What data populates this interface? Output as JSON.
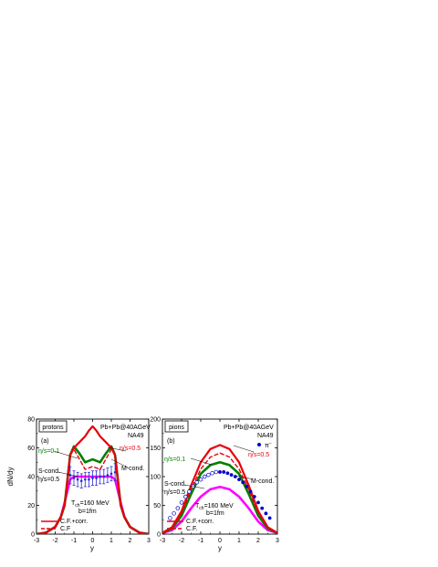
{
  "chart_data": [
    {
      "type": "line",
      "panel_label": "(a)",
      "species_label": "protons",
      "system_label": "Pb+Pb@40AGeV",
      "experiment_label": "NA49",
      "xlabel": "y",
      "ylabel": "dN/dy",
      "xlim": [
        -3,
        3
      ],
      "ylim": [
        0,
        80
      ],
      "xticks": [
        "-3",
        "-2",
        "-1",
        "0",
        "1",
        "2",
        "3"
      ],
      "yticks": [
        "0",
        "20",
        "40",
        "60",
        "80"
      ],
      "annotations": {
        "eta_high": "η/s=0.5",
        "eta_low": "η/s=0.1",
        "m_cond": "M-cond.",
        "s_cond": "S-cond.",
        "s_cond_eta": "η/s=0.5",
        "tch": "T",
        "tch_sub": "ch",
        "tch_val": "=160 MeV",
        "impact": "b=1fm"
      },
      "legend": [
        "C.F.+corr.",
        "C.F"
      ],
      "series": [
        {
          "name": "C.F.+corr.",
          "color": "#e8000b",
          "x": [
            -3,
            -2.5,
            -2,
            -1.7,
            -1.5,
            -1.2,
            -1.0,
            -0.7,
            -0.4,
            -0.2,
            0,
            0.2,
            0.4,
            0.7,
            1.0,
            1.2,
            1.5,
            1.7,
            2,
            2.5,
            3
          ],
          "y": [
            0,
            1,
            5,
            12,
            20,
            55,
            60,
            64,
            68,
            72,
            75,
            72,
            68,
            64,
            60,
            55,
            20,
            12,
            5,
            1,
            0
          ]
        },
        {
          "name": "C.F",
          "color": "#e8000b",
          "dashed": true,
          "x": [
            -3,
            -2.5,
            -2,
            -1.7,
            -1.5,
            -1.2,
            -1.0,
            -0.7,
            -0.4,
            -0.2,
            0,
            0.2,
            0.4,
            0.7,
            1.0,
            1.2,
            1.5,
            1.7,
            2,
            2.5,
            3
          ],
          "y": [
            0,
            1,
            5,
            12,
            20,
            55,
            59,
            52,
            45,
            46,
            47,
            46,
            45,
            52,
            59,
            55,
            20,
            12,
            5,
            1,
            0
          ]
        },
        {
          "color": "#008000",
          "x": [
            -3,
            -2.5,
            -2,
            -1.7,
            -1.5,
            -1.2,
            -1.0,
            -0.7,
            -0.4,
            -0.2,
            0,
            0.2,
            0.4,
            0.7,
            1.0,
            1.2,
            1.5,
            1.7,
            2,
            2.5,
            3
          ],
          "y": [
            0,
            1,
            5,
            12,
            20,
            55,
            61,
            56,
            50,
            51,
            52,
            51,
            50,
            56,
            61,
            55,
            20,
            12,
            5,
            1,
            0
          ]
        },
        {
          "color": "#ff00ff",
          "x": [
            -3,
            -2.5,
            -2,
            -1.7,
            -1.5,
            -1.2,
            -1.0,
            -0.5,
            0,
            0.5,
            1.0,
            1.2,
            1.5,
            1.7,
            2,
            2.5,
            3
          ],
          "y": [
            0,
            1,
            5,
            12,
            22,
            38,
            40,
            40,
            40,
            40,
            40,
            38,
            22,
            12,
            5,
            1,
            0
          ]
        }
      ],
      "data_points": {
        "name": "NA49",
        "x": [
          -1.2,
          -1.0,
          -0.8,
          -0.6,
          -0.4,
          -0.2,
          0,
          0.2,
          0.4,
          0.6,
          0.8,
          1.0,
          1.2
        ],
        "y": [
          41,
          39,
          38,
          37,
          38,
          38,
          39,
          39,
          40,
          40,
          41,
          42,
          43
        ],
        "err": [
          6,
          5,
          5,
          5,
          5,
          5,
          5,
          5,
          5,
          5,
          5,
          5,
          6
        ]
      }
    },
    {
      "type": "line",
      "panel_label": "(b)",
      "species_label": "pions",
      "system_label": "Pb+Pb@40AGeV",
      "experiment_label": "NA49",
      "pion_label": "π",
      "pion_sup": "−",
      "xlabel": "y",
      "ylabel": "",
      "xlim": [
        -3,
        3
      ],
      "ylim": [
        0,
        200
      ],
      "xticks": [
        "-3",
        "-2",
        "-1",
        "0",
        "1",
        "2",
        "3"
      ],
      "yticks": [
        "0",
        "50",
        "100",
        "150",
        "200"
      ],
      "annotations": {
        "eta_high": "η/s=0.5",
        "eta_low": "η/s=0.1",
        "m_cond": "M-cond.",
        "s_cond": "S-cond.",
        "s_cond_eta": "η/s=0.5",
        "tch": "T",
        "tch_sub": "ch",
        "tch_val": "=160 MeV",
        "impact": "b=1fm"
      },
      "legend": [
        "C.F.+corr.",
        "C.F."
      ],
      "series": [
        {
          "name": "C.F.+corr.",
          "color": "#e8000b",
          "x": [
            -3,
            -2.5,
            -2,
            -1.5,
            -1,
            -0.5,
            0,
            0.5,
            1,
            1.5,
            2,
            2.5,
            3
          ],
          "y": [
            2,
            12,
            40,
            85,
            125,
            148,
            155,
            148,
            125,
            85,
            40,
            12,
            2
          ]
        },
        {
          "name": "C.F.",
          "color": "#e8000b",
          "dashed": true,
          "x": [
            -3,
            -2.5,
            -2,
            -1.5,
            -1,
            -0.5,
            0,
            0.5,
            1,
            1.5,
            2,
            2.5,
            3
          ],
          "y": [
            2,
            11,
            36,
            78,
            113,
            134,
            141,
            134,
            113,
            78,
            36,
            11,
            2
          ]
        },
        {
          "color": "#008000",
          "x": [
            -3,
            -2.5,
            -2,
            -1.5,
            -1,
            -0.5,
            0,
            0.5,
            1,
            1.5,
            2,
            2.5,
            3
          ],
          "y": [
            2,
            10,
            32,
            70,
            105,
            120,
            125,
            120,
            105,
            70,
            32,
            10,
            2
          ]
        },
        {
          "color": "#ff00ff",
          "x": [
            -3,
            -2.5,
            -2,
            -1.5,
            -1,
            -0.5,
            0,
            0.5,
            1,
            1.5,
            2,
            2.5,
            3
          ],
          "y": [
            2,
            7,
            22,
            45,
            65,
            78,
            82,
            78,
            65,
            45,
            22,
            7,
            2
          ]
        }
      ],
      "data_points_filled": {
        "name": "π−",
        "x": [
          0,
          0.2,
          0.4,
          0.6,
          0.8,
          1.0,
          1.2,
          1.4,
          1.6,
          1.8,
          2.0,
          2.2,
          2.4,
          2.6
        ],
        "y": [
          108,
          108,
          106,
          103,
          100,
          95,
          90,
          83,
          74,
          65,
          55,
          45,
          36,
          28
        ]
      },
      "data_points_open": {
        "x": [
          -2.6,
          -2.4,
          -2.2,
          -2.0,
          -1.8,
          -1.6,
          -1.4,
          -1.2,
          -1.0,
          -0.8,
          -0.6,
          -0.4,
          -0.2
        ],
        "y": [
          28,
          36,
          45,
          55,
          65,
          74,
          83,
          90,
          95,
          100,
          103,
          106,
          108
        ]
      }
    }
  ]
}
